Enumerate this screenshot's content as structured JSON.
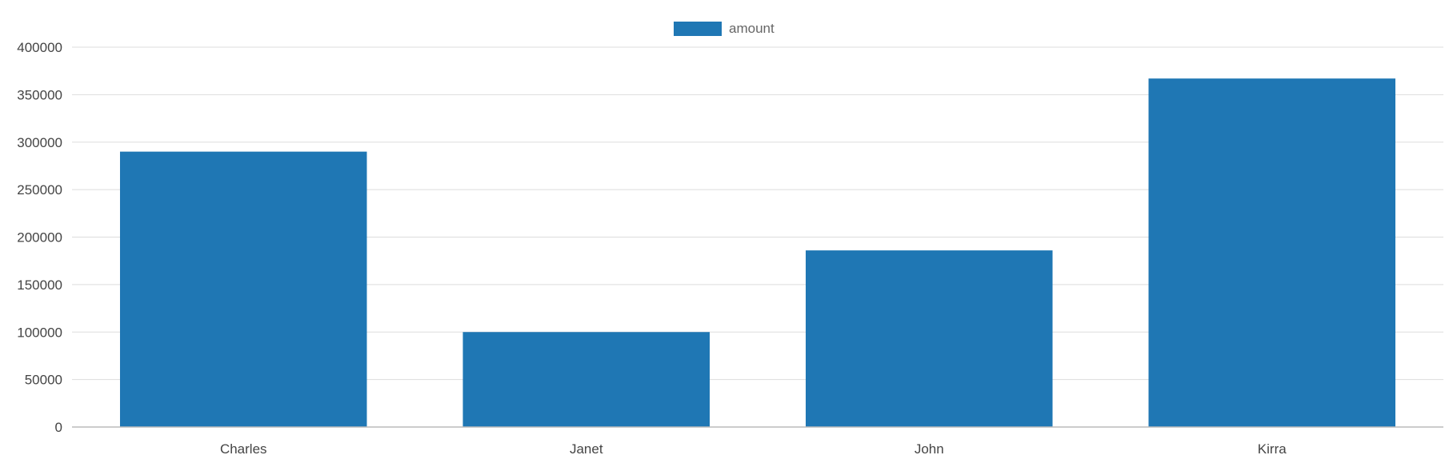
{
  "chart_data": {
    "type": "bar",
    "categories": [
      "Charles",
      "Janet",
      "John",
      "Kirra"
    ],
    "series": [
      {
        "name": "amount",
        "values": [
          290000,
          100000,
          186000,
          367000
        ],
        "color": "#1f77b4"
      }
    ],
    "ylim": [
      0,
      400000
    ],
    "yticks": [
      0,
      50000,
      100000,
      150000,
      200000,
      250000,
      300000,
      350000,
      400000
    ],
    "grid": true,
    "legend_position": "top-center",
    "gridline_color": "#dddddd",
    "axis_color": "#bbbbbb"
  }
}
